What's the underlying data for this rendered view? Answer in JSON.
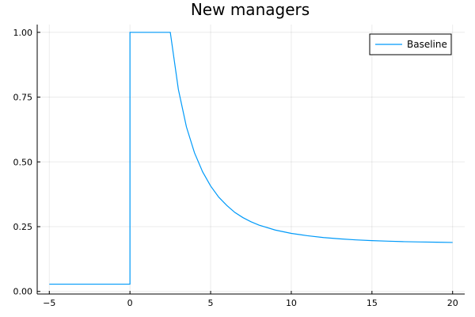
{
  "chart_data": {
    "type": "line",
    "title": "New managers",
    "xlabel": "",
    "ylabel": "",
    "xlim": [
      -5.75,
      20.75
    ],
    "ylim": [
      -0.01,
      1.03
    ],
    "x_ticks": [
      -5,
      0,
      5,
      10,
      15,
      20
    ],
    "x_tick_labels": [
      "−5",
      "0",
      "5",
      "10",
      "15",
      "20"
    ],
    "y_ticks": [
      0.0,
      0.25,
      0.5,
      0.75,
      1.0
    ],
    "y_tick_labels": [
      "0.00",
      "0.25",
      "0.50",
      "0.75",
      "1.00"
    ],
    "grid": true,
    "legend_position": "top-right",
    "series": [
      {
        "name": "Baseline",
        "color": "#009af9",
        "x": [
          -5,
          0,
          0,
          2.5,
          3,
          3.5,
          4,
          4.5,
          5,
          5.5,
          6,
          6.5,
          7,
          7.5,
          8,
          9,
          10,
          11,
          12,
          13,
          14,
          15,
          16,
          17,
          18,
          19,
          20
        ],
        "y": [
          0.028,
          0.028,
          1.0,
          1.0,
          0.78,
          0.635,
          0.535,
          0.462,
          0.407,
          0.364,
          0.332,
          0.305,
          0.285,
          0.269,
          0.256,
          0.237,
          0.224,
          0.215,
          0.208,
          0.203,
          0.199,
          0.196,
          0.194,
          0.192,
          0.191,
          0.19,
          0.189
        ]
      }
    ]
  }
}
